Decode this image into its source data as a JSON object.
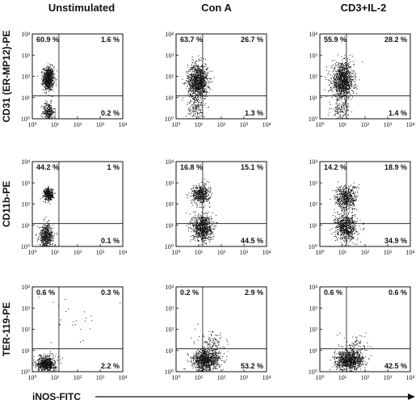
{
  "chart_data": {
    "type": "scatter",
    "description_scale": "log",
    "columns": [
      "Unstimulated",
      "Con A",
      "CD3+IL-2"
    ],
    "rows": [
      "CD31 (ER-MP12)-PE",
      "CD11b-PE",
      "TER-119-PE"
    ],
    "xlabel": "iNOS-FITC",
    "x_ticks": [
      "10⁰",
      "10¹",
      "10²",
      "10³",
      "10⁴"
    ],
    "y_ticks": [
      "10⁰",
      "10¹",
      "10²",
      "10³",
      "10⁴"
    ],
    "xlim": [
      1,
      10000
    ],
    "ylim": [
      1,
      10000
    ],
    "quadrant_gate": {
      "x": 15,
      "y": 12
    },
    "panels": [
      {
        "row": 0,
        "col": 0,
        "quadrants": {
          "upper_left": "60.9 %",
          "upper_right": "1.6 %",
          "lower_right": "0.2 %"
        }
      },
      {
        "row": 0,
        "col": 1,
        "quadrants": {
          "upper_left": "63.7 %",
          "upper_right": "26.7 %",
          "lower_right": "1.3 %"
        }
      },
      {
        "row": 0,
        "col": 2,
        "quadrants": {
          "upper_left": "55.9 %",
          "upper_right": "28.2 %",
          "lower_right": "1.4 %"
        }
      },
      {
        "row": 1,
        "col": 0,
        "quadrants": {
          "upper_left": "44.2 %",
          "upper_right": "1 %",
          "lower_right": "0.1 %"
        }
      },
      {
        "row": 1,
        "col": 1,
        "quadrants": {
          "upper_left": "16.8 %",
          "upper_right": "15.1 %",
          "lower_right": "44.5 %"
        }
      },
      {
        "row": 1,
        "col": 2,
        "quadrants": {
          "upper_left": "14.2 %",
          "upper_right": "18.9 %",
          "lower_right": "34.9 %"
        }
      },
      {
        "row": 2,
        "col": 0,
        "quadrants": {
          "upper_left": "0.6 %",
          "upper_right": "0.3 %",
          "lower_right": "2.2 %"
        }
      },
      {
        "row": 2,
        "col": 1,
        "quadrants": {
          "upper_left": "0.2 %",
          "upper_right": "2.9 %",
          "lower_right": "53.2 %"
        }
      },
      {
        "row": 2,
        "col": 2,
        "quadrants": {
          "upper_left": "0.6 %",
          "upper_right": "0.6 %",
          "lower_right": "42.5 %"
        }
      }
    ],
    "clusters": [
      {
        "row": 0,
        "col": 0,
        "blobs": [
          {
            "x": 5,
            "y": 80,
            "sx": 0.12,
            "sy": 0.28,
            "n": 700
          },
          {
            "x": 5,
            "y": 2.2,
            "sx": 0.13,
            "sy": 0.22,
            "n": 260
          }
        ]
      },
      {
        "row": 0,
        "col": 1,
        "blobs": [
          {
            "x": 9,
            "y": 60,
            "sx": 0.22,
            "sy": 0.42,
            "n": 1100
          },
          {
            "x": 7,
            "y": 2.5,
            "sx": 0.2,
            "sy": 0.25,
            "n": 120
          }
        ]
      },
      {
        "row": 0,
        "col": 2,
        "blobs": [
          {
            "x": 10,
            "y": 60,
            "sx": 0.24,
            "sy": 0.42,
            "n": 1100
          },
          {
            "x": 8,
            "y": 2.5,
            "sx": 0.2,
            "sy": 0.25,
            "n": 120
          }
        ]
      },
      {
        "row": 1,
        "col": 0,
        "blobs": [
          {
            "x": 5,
            "y": 300,
            "sx": 0.1,
            "sy": 0.14,
            "n": 420
          },
          {
            "x": 4,
            "y": 3,
            "sx": 0.15,
            "sy": 0.3,
            "n": 520
          }
        ]
      },
      {
        "row": 1,
        "col": 1,
        "blobs": [
          {
            "x": 12,
            "y": 300,
            "sx": 0.2,
            "sy": 0.22,
            "n": 450
          },
          {
            "x": 14,
            "y": 8,
            "sx": 0.22,
            "sy": 0.32,
            "n": 750
          }
        ]
      },
      {
        "row": 1,
        "col": 2,
        "blobs": [
          {
            "x": 14,
            "y": 200,
            "sx": 0.24,
            "sy": 0.3,
            "n": 500
          },
          {
            "x": 14,
            "y": 8,
            "sx": 0.24,
            "sy": 0.32,
            "n": 650
          }
        ]
      },
      {
        "row": 2,
        "col": 0,
        "blobs": [
          {
            "x": 4,
            "y": 2.5,
            "sx": 0.2,
            "sy": 0.18,
            "n": 650
          },
          {
            "x": 80,
            "y": 300,
            "sx": 1.0,
            "sy": 0.8,
            "n": 25
          }
        ]
      },
      {
        "row": 2,
        "col": 1,
        "blobs": [
          {
            "x": 20,
            "y": 3.5,
            "sx": 0.3,
            "sy": 0.25,
            "n": 900
          },
          {
            "x": 40,
            "y": 20,
            "sx": 0.3,
            "sy": 0.3,
            "n": 120
          }
        ]
      },
      {
        "row": 2,
        "col": 2,
        "blobs": [
          {
            "x": 20,
            "y": 3.5,
            "sx": 0.3,
            "sy": 0.22,
            "n": 900
          },
          {
            "x": 40,
            "y": 15,
            "sx": 0.3,
            "sy": 0.28,
            "n": 100
          }
        ]
      }
    ]
  }
}
